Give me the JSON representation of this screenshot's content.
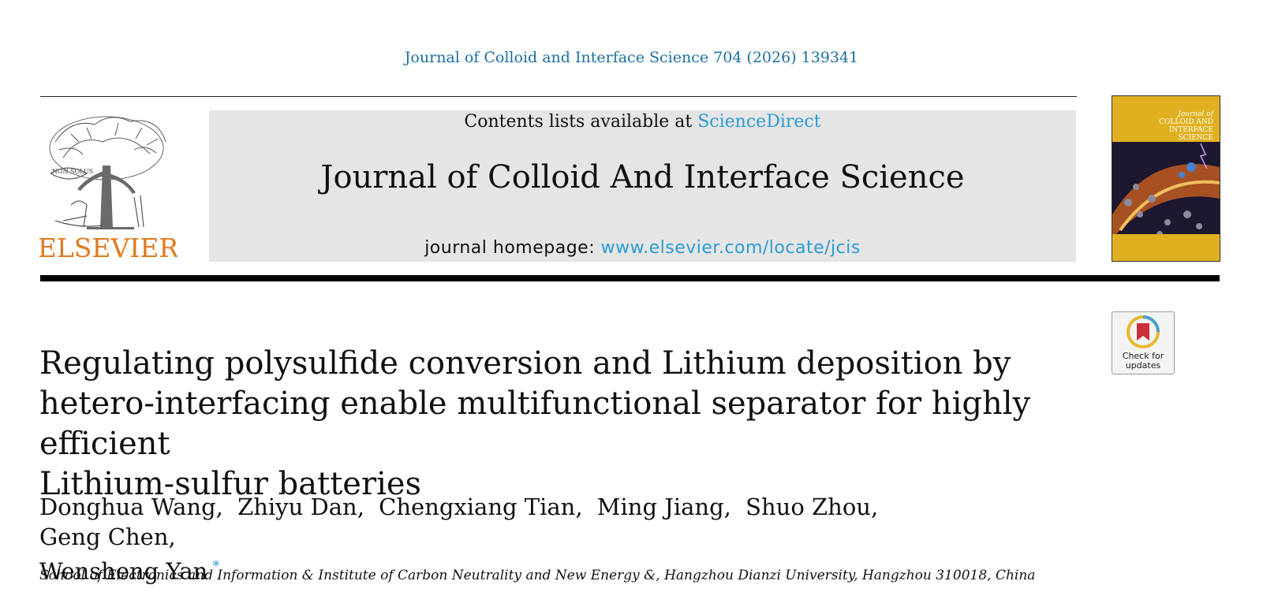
{
  "header": {
    "citation": "Journal of Colloid and Interface Science 704 (2026) 139341",
    "publisher": "ELSEVIER",
    "publisher_motto": "NON SOLUS",
    "contents_prefix": "Contents lists available at ",
    "contents_link": "ScienceDirect",
    "journal_name": "Journal of Colloid And Interface Science",
    "homepage_prefix": "journal homepage: ",
    "homepage_link": "www.elsevier.com/locate/jcis",
    "cover": {
      "line1": "Journal of",
      "line2": "COLLOID AND",
      "line3": "INTERFACE",
      "line4": "SCIENCE"
    }
  },
  "check_updates": {
    "label": "Check for\nupdates",
    "icon": "bookmark-ribbon-icon"
  },
  "article": {
    "title_lines": [
      "Regulating polysulfide conversion and Lithium deposition by",
      "hetero-interfacing enable multifunctional separator for highly efficient",
      "Lithium-sulfur batteries"
    ],
    "authors": [
      "Donghua Wang",
      "Zhiyu Dan",
      "Chengxiang Tian",
      "Ming Jiang",
      "Shuo Zhou",
      "Geng Chen",
      "Wensheng Yan"
    ],
    "author_separator": ",",
    "corresponding_mark": "*",
    "affiliation": "School of Electronics and Information & Institute of Carbon Neutrality and New Energy &, Hangzhou Dianzi University, Hangzhou 310018, China"
  },
  "colors": {
    "link": "#2b9bd6",
    "citation": "#1a6fa0",
    "elsevier_orange": "#e07a20",
    "cover_gold": "#e0b020",
    "banner_bg": "#e5e5e5"
  }
}
